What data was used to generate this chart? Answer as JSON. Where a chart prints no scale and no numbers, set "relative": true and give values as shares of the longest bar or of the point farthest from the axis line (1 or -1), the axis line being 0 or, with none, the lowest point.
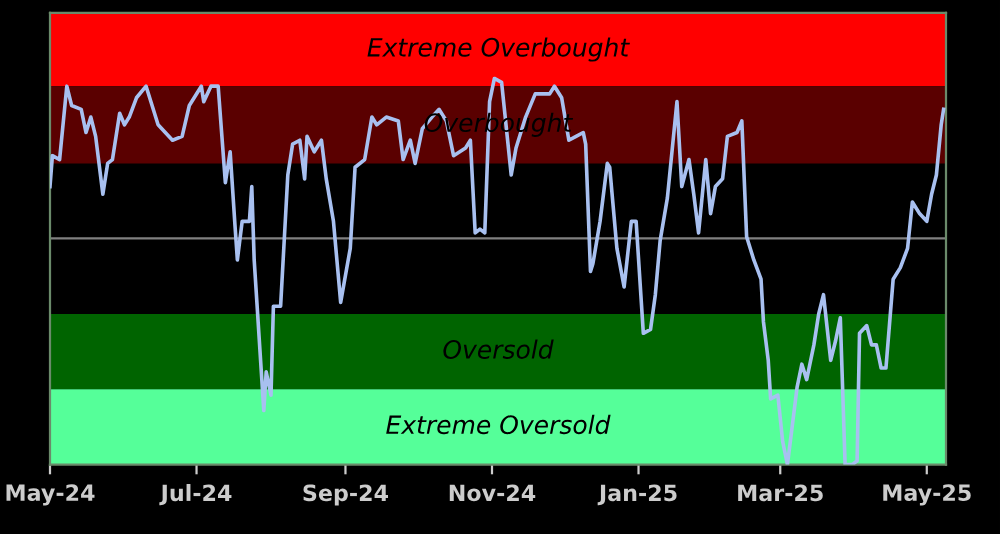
{
  "chart_data": {
    "type": "line",
    "relative": true,
    "x": [
      "2024-05-01",
      "2024-05-02",
      "2024-05-05",
      "2024-05-08",
      "2024-05-10",
      "2024-05-14",
      "2024-05-16",
      "2024-05-18",
      "2024-05-20",
      "2024-05-23",
      "2024-05-25",
      "2024-05-27",
      "2024-05-30",
      "2024-06-01",
      "2024-06-03",
      "2024-06-06",
      "2024-06-10",
      "2024-06-15",
      "2024-06-21",
      "2024-06-25",
      "2024-06-28",
      "2024-07-03",
      "2024-07-04",
      "2024-07-07",
      "2024-07-10",
      "2024-07-13",
      "2024-07-15",
      "2024-07-17",
      "2024-07-18",
      "2024-07-20",
      "2024-07-23",
      "2024-07-24",
      "2024-07-25",
      "2024-07-29",
      "2024-07-30",
      "2024-08-01",
      "2024-08-02",
      "2024-08-05",
      "2024-08-08",
      "2024-08-10",
      "2024-08-13",
      "2024-08-15",
      "2024-08-16",
      "2024-08-19",
      "2024-08-22",
      "2024-08-24",
      "2024-08-27",
      "2024-08-30",
      "2024-09-03",
      "2024-09-05",
      "2024-09-09",
      "2024-09-12",
      "2024-09-14",
      "2024-09-18",
      "2024-09-23",
      "2024-09-25",
      "2024-09-28",
      "2024-09-30",
      "2024-10-03",
      "2024-10-07",
      "2024-10-10",
      "2024-10-13",
      "2024-10-16",
      "2024-10-21",
      "2024-10-23",
      "2024-10-25",
      "2024-10-27",
      "2024-10-29",
      "2024-10-31",
      "2024-11-02",
      "2024-11-05",
      "2024-11-09",
      "2024-11-11",
      "2024-11-15",
      "2024-11-19",
      "2024-11-25",
      "2024-11-27",
      "2024-11-30",
      "2024-12-03",
      "2024-12-06",
      "2024-12-09",
      "2024-12-10",
      "2024-12-12",
      "2024-12-13",
      "2024-12-16",
      "2024-12-19",
      "2024-12-20",
      "2024-12-23",
      "2024-12-26",
      "2024-12-29",
      "2024-12-31",
      "2025-01-03",
      "2025-01-06",
      "2025-01-08",
      "2025-01-10",
      "2025-01-13",
      "2025-01-17",
      "2025-01-19",
      "2025-01-22",
      "2025-01-24",
      "2025-01-26",
      "2025-01-29",
      "2025-01-31",
      "2025-02-02",
      "2025-02-05",
      "2025-02-07",
      "2025-02-11",
      "2025-02-13",
      "2025-02-15",
      "2025-02-18",
      "2025-02-21",
      "2025-02-22",
      "2025-02-24",
      "2025-02-25",
      "2025-02-28",
      "2025-03-02",
      "2025-03-04",
      "2025-03-06",
      "2025-03-08",
      "2025-03-10",
      "2025-03-12",
      "2025-03-15",
      "2025-03-17",
      "2025-03-19",
      "2025-03-22",
      "2025-03-24",
      "2025-03-26",
      "2025-03-28",
      "2025-03-31",
      "2025-04-02",
      "2025-04-03",
      "2025-04-06",
      "2025-04-08",
      "2025-04-10",
      "2025-04-12",
      "2025-04-14",
      "2025-04-17",
      "2025-04-20",
      "2025-04-23",
      "2025-04-25",
      "2025-04-28",
      "2025-05-01",
      "2025-05-03",
      "2025-05-05",
      "2025-05-07",
      "2025-05-08"
    ],
    "series": [
      {
        "color": "#a8c0f0",
        "values": [
          0.72,
          0.8,
          0.79,
          0.98,
          0.93,
          0.92,
          0.86,
          0.9,
          0.85,
          0.7,
          0.78,
          0.79,
          0.91,
          0.88,
          0.9,
          0.95,
          0.98,
          0.88,
          0.84,
          0.85,
          0.93,
          0.98,
          0.94,
          0.98,
          0.98,
          0.73,
          0.81,
          0.62,
          0.53,
          0.63,
          0.63,
          0.72,
          0.53,
          0.14,
          0.24,
          0.18,
          0.41,
          0.41,
          0.75,
          0.83,
          0.84,
          0.74,
          0.85,
          0.81,
          0.84,
          0.74,
          0.63,
          0.42,
          0.56,
          0.77,
          0.79,
          0.9,
          0.88,
          0.9,
          0.89,
          0.79,
          0.84,
          0.78,
          0.87,
          0.9,
          0.92,
          0.89,
          0.8,
          0.82,
          0.84,
          0.6,
          0.61,
          0.6,
          0.94,
          1.0,
          0.99,
          0.75,
          0.82,
          0.9,
          0.96,
          0.96,
          0.98,
          0.95,
          0.84,
          0.85,
          0.86,
          0.83,
          0.5,
          0.52,
          0.63,
          0.78,
          0.77,
          0.56,
          0.46,
          0.63,
          0.63,
          0.34,
          0.35,
          0.44,
          0.58,
          0.69,
          0.94,
          0.72,
          0.79,
          0.7,
          0.6,
          0.79,
          0.65,
          0.72,
          0.74,
          0.85,
          0.86,
          0.89,
          0.59,
          0.53,
          0.48,
          0.37,
          0.27,
          0.17,
          0.18,
          0.06,
          0.0,
          0.1,
          0.2,
          0.26,
          0.22,
          0.31,
          0.39,
          0.44,
          0.27,
          0.32,
          0.38,
          0.0,
          0.0,
          0.01,
          0.34,
          0.36,
          0.31,
          0.31,
          0.25,
          0.25,
          0.48,
          0.51,
          0.56,
          0.68,
          0.65,
          0.63,
          0.7,
          0.75,
          0.88,
          0.92
        ]
      }
    ],
    "xlim": [
      "2024-05-01",
      "2025-05-09"
    ],
    "xticks": [
      {
        "value": "2024-05-01",
        "label": "May-24"
      },
      {
        "value": "2024-07-01",
        "label": "Jul-24"
      },
      {
        "value": "2024-09-01",
        "label": "Sep-24"
      },
      {
        "value": "2024-11-01",
        "label": "Nov-24"
      },
      {
        "value": "2025-01-01",
        "label": "Jan-25"
      },
      {
        "value": "2025-03-01",
        "label": "Mar-25"
      },
      {
        "value": "2025-05-01",
        "label": "May-25"
      }
    ],
    "bands": [
      {
        "axis": "y",
        "from": 0.98,
        "to": 1.17,
        "label": "Extreme Overbought",
        "color": "#ff0000"
      },
      {
        "axis": "y",
        "from": 0.78,
        "to": 0.98,
        "label": "Overbought",
        "color": "#5a0000"
      },
      {
        "axis": "y",
        "from": 0.195,
        "to": 0.39,
        "label": "Oversold",
        "color": "#006400"
      },
      {
        "axis": "y",
        "from": 0.0,
        "to": 0.195,
        "label": "Extreme Oversold",
        "color": "#55ff99"
      }
    ],
    "ref_lines": [
      {
        "axis": "y",
        "value": 0.586,
        "color": "#808080"
      }
    ],
    "tick_labels": "x",
    "grid": false,
    "legend": false,
    "marker": "none",
    "line_style": "solid"
  }
}
